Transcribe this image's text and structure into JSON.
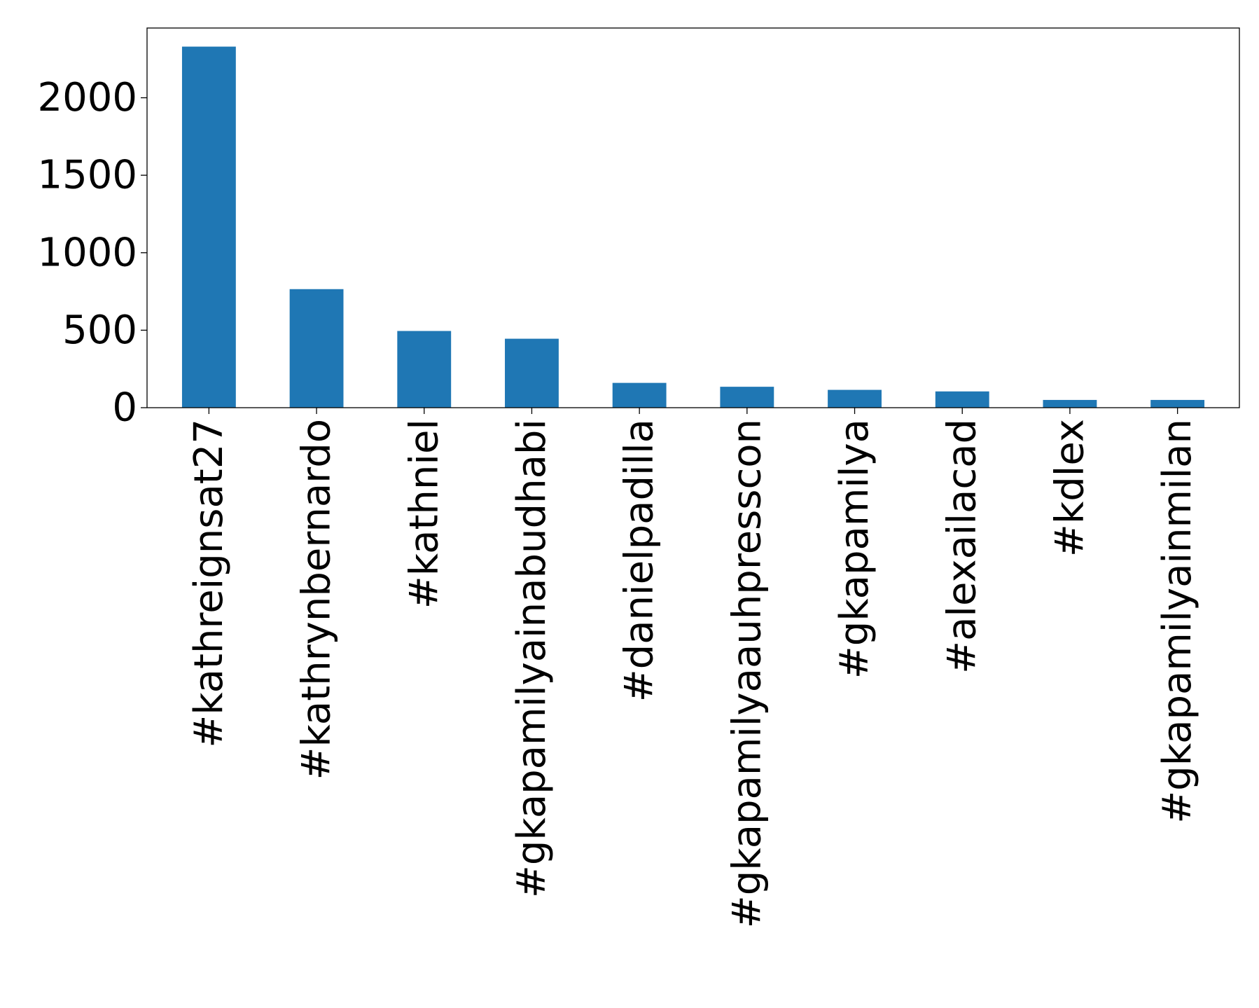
{
  "chart_data": {
    "type": "bar",
    "title": "",
    "xlabel": "",
    "ylabel": "",
    "categories": [
      "#kathreignsat27",
      "#kathrynbernardo",
      "#kathniel",
      "#gkapamilyainabudhabi",
      "#danielpadilla",
      "#gkapamilyaauhpresscon",
      "#gkapamilya",
      "#alexailacad",
      "#kdlex",
      "#gkapamilyainmilan"
    ],
    "values": [
      2330,
      765,
      495,
      445,
      160,
      135,
      115,
      105,
      50,
      50
    ],
    "ylim": [
      0,
      2450
    ],
    "yticks": [
      0,
      500,
      1000,
      1500,
      2000
    ],
    "ytick_labels": [
      "0",
      "500",
      "1000",
      "1500",
      "2000"
    ],
    "bar_color": "#1f77b4",
    "grid": false,
    "legend": "none"
  }
}
